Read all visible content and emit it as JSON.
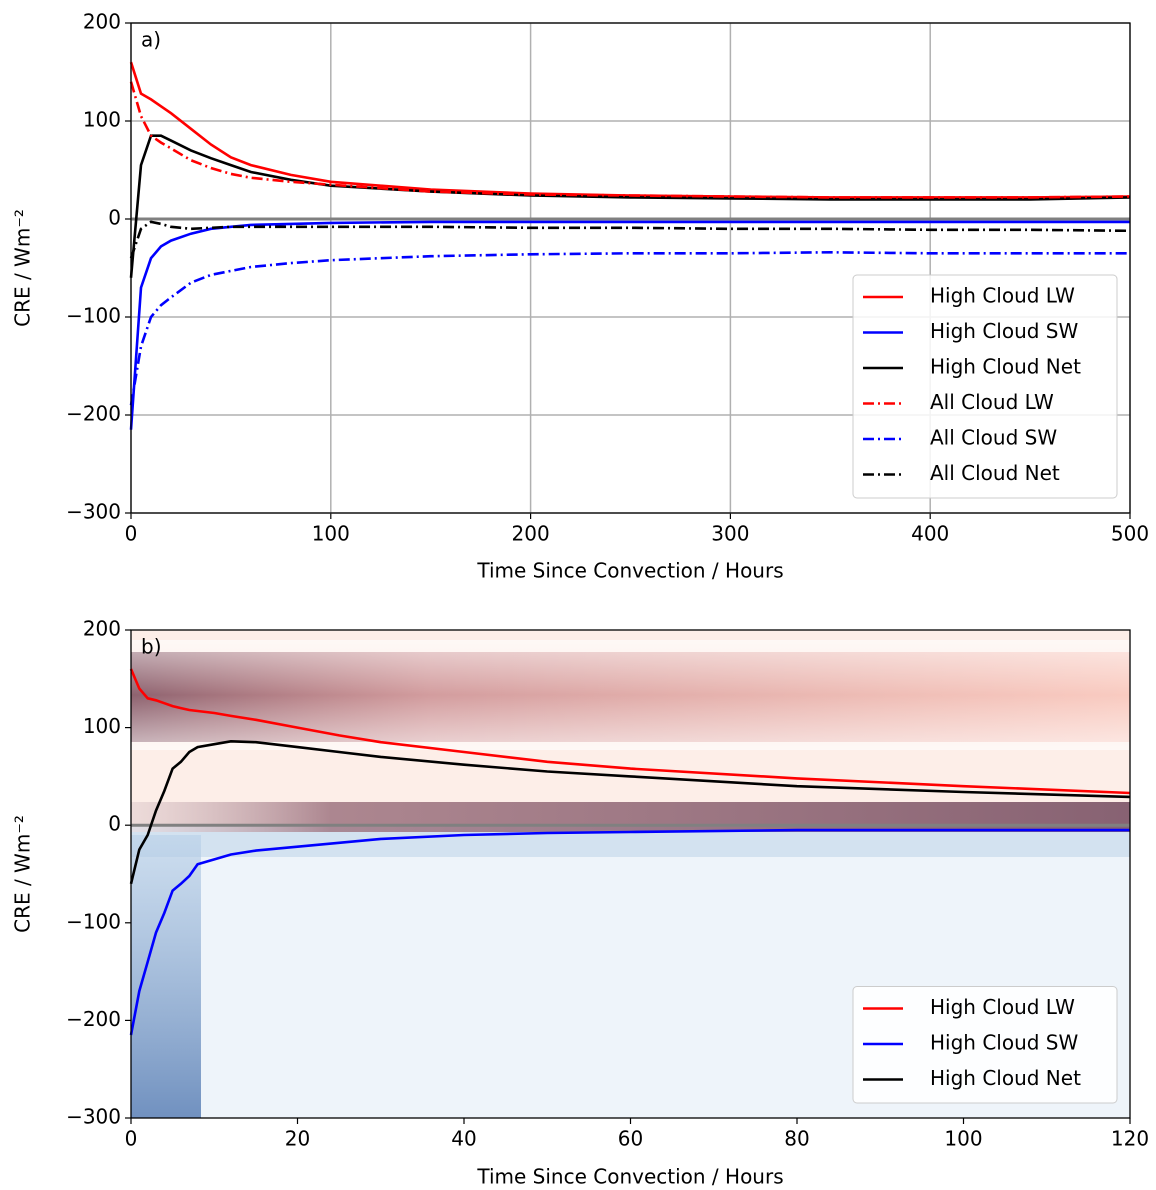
{
  "chart_data": [
    {
      "type": "line",
      "annotation": "a)",
      "xlabel": "Time Since Convection / Hours",
      "ylabel": "CRE / Wm⁻²",
      "x": [
        0,
        5,
        10,
        15,
        20,
        30,
        40,
        50,
        60,
        80,
        100,
        150,
        200,
        250,
        300,
        350,
        400,
        450,
        500
      ],
      "series": [
        {
          "name": "High Cloud LW",
          "color": "#ff0000",
          "linestyle": "solid",
          "values": [
            160,
            128,
            122,
            115,
            108,
            92,
            76,
            63,
            55,
            45,
            38,
            30,
            26,
            24,
            23,
            22,
            22,
            22,
            23
          ]
        },
        {
          "name": "High Cloud SW",
          "color": "#0000ff",
          "linestyle": "solid",
          "values": [
            -215,
            -70,
            -40,
            -28,
            -22,
            -15,
            -10,
            -8,
            -6,
            -5,
            -4,
            -3,
            -3,
            -3,
            -3,
            -3,
            -3,
            -3,
            -3
          ]
        },
        {
          "name": "High Cloud Net",
          "color": "#000000",
          "linestyle": "solid",
          "values": [
            -60,
            55,
            85,
            85,
            80,
            70,
            62,
            55,
            48,
            40,
            34,
            28,
            24,
            22,
            21,
            20,
            20,
            20,
            22
          ]
        },
        {
          "name": "All Cloud LW",
          "color": "#ff0000",
          "linestyle": "dashdot",
          "values": [
            140,
            105,
            85,
            78,
            72,
            60,
            52,
            46,
            42,
            38,
            35,
            28,
            25,
            24,
            23,
            22,
            22,
            22,
            23
          ]
        },
        {
          "name": "All Cloud SW",
          "color": "#0000ff",
          "linestyle": "dashdot",
          "values": [
            -190,
            -130,
            -100,
            -88,
            -80,
            -65,
            -57,
            -53,
            -49,
            -45,
            -42,
            -38,
            -36,
            -35,
            -35,
            -34,
            -35,
            -35,
            -35
          ]
        },
        {
          "name": "All Cloud Net",
          "color": "#000000",
          "linestyle": "dashdot",
          "values": [
            -40,
            -10,
            -3,
            -5,
            -8,
            -10,
            -9,
            -8,
            -8,
            -8,
            -8,
            -8,
            -9,
            -9,
            -10,
            -10,
            -11,
            -11,
            -12
          ]
        }
      ],
      "xlim": [
        0,
        500
      ],
      "xticks": [
        0,
        100,
        200,
        300,
        400,
        500
      ],
      "ylim": [
        -300,
        200
      ],
      "yticks": [
        {
          "value": -300,
          "label": "−300"
        },
        {
          "value": -200,
          "label": "−200"
        },
        {
          "value": -100,
          "label": "−100"
        },
        0,
        100,
        200
      ],
      "grid": true,
      "legend": "lower right"
    },
    {
      "type": "line",
      "annotation": "b)",
      "xlabel": "Time Since Convection / Hours",
      "ylabel": "CRE / Wm⁻²",
      "x": [
        0,
        1,
        2,
        3,
        4,
        5,
        6,
        7,
        8,
        10,
        12,
        15,
        20,
        25,
        30,
        40,
        50,
        60,
        80,
        100,
        120
      ],
      "series": [
        {
          "name": "High Cloud LW",
          "color": "#ff0000",
          "linestyle": "solid",
          "values": [
            160,
            140,
            130,
            128,
            125,
            122,
            120,
            118,
            117,
            115,
            112,
            108,
            100,
            92,
            85,
            75,
            65,
            58,
            48,
            40,
            33
          ]
        },
        {
          "name": "High Cloud SW",
          "color": "#0000ff",
          "linestyle": "solid",
          "values": [
            -215,
            -170,
            -140,
            -110,
            -90,
            -67,
            -60,
            -52,
            -40,
            -35,
            -30,
            -26,
            -22,
            -18,
            -14,
            -10,
            -8,
            -7,
            -5,
            -5,
            -5
          ]
        },
        {
          "name": "High Cloud Net",
          "color": "#000000",
          "linestyle": "solid",
          "values": [
            -60,
            -25,
            -10,
            15,
            35,
            58,
            65,
            75,
            80,
            83,
            86,
            85,
            80,
            75,
            70,
            62,
            55,
            50,
            40,
            34,
            29
          ]
        }
      ],
      "xlim": [
        0,
        120
      ],
      "xticks": [
        0,
        20,
        40,
        60,
        80,
        100,
        120
      ],
      "ylim": [
        -300,
        200
      ],
      "yticks": [
        {
          "value": -300,
          "label": "−300"
        },
        {
          "value": -200,
          "label": "−200"
        },
        {
          "value": -100,
          "label": "−100"
        },
        0,
        100,
        200
      ],
      "grid": false,
      "legend": "lower right"
    }
  ]
}
